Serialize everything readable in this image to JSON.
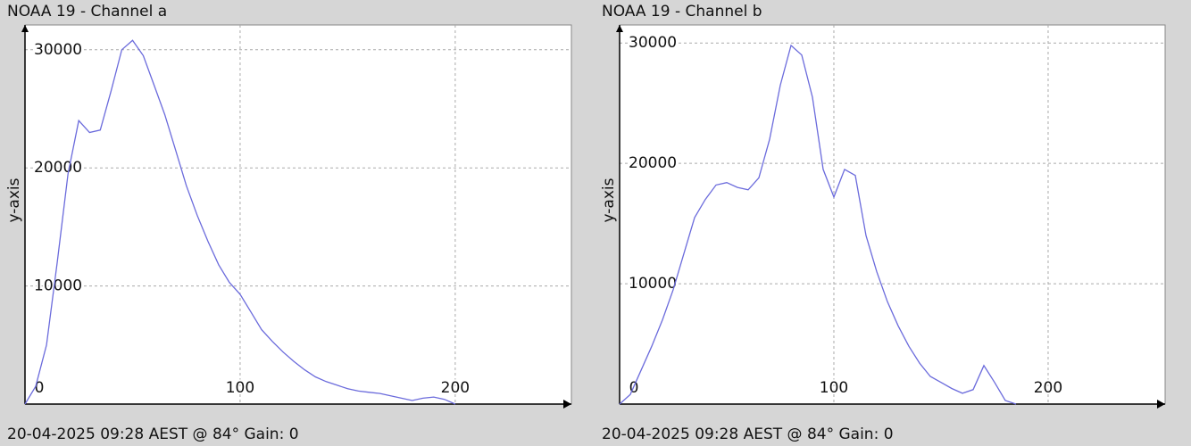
{
  "chart_data": [
    {
      "type": "line",
      "title": "NOAA 19 - Channel a",
      "ylabel": "y-axis",
      "footer": "20-04-2025 09:28 AEST @ 84° Gain: 0",
      "color": "#6b6bdc",
      "grid": true,
      "xlim": [
        0,
        254
      ],
      "ylim": [
        0,
        32100
      ],
      "xticks": [
        0,
        100,
        200
      ],
      "yticks": [
        10000,
        20000,
        30000
      ],
      "x": [
        0,
        5,
        10,
        15,
        20,
        25,
        30,
        35,
        40,
        45,
        50,
        55,
        60,
        65,
        70,
        75,
        80,
        85,
        90,
        95,
        100,
        105,
        110,
        115,
        120,
        125,
        130,
        135,
        140,
        145,
        150,
        155,
        160,
        165,
        170,
        175,
        180,
        185,
        190,
        195,
        200
      ],
      "values": [
        0,
        1500,
        5000,
        12000,
        19500,
        24000,
        23000,
        23200,
        26500,
        30000,
        30800,
        29500,
        27000,
        24500,
        21500,
        18500,
        16000,
        13800,
        11800,
        10300,
        9300,
        7800,
        6300,
        5300,
        4400,
        3600,
        2900,
        2300,
        1900,
        1600,
        1300,
        1100,
        1000,
        900,
        700,
        500,
        300,
        500,
        600,
        400,
        0
      ]
    },
    {
      "type": "line",
      "title": "NOAA 19 - Channel b",
      "ylabel": "y-axis",
      "footer": "20-04-2025 09:28 AEST @ 84° Gain: 0",
      "color": "#6b6bdc",
      "grid": true,
      "xlim": [
        0,
        254.6
      ],
      "ylim": [
        0,
        31500
      ],
      "xticks": [
        0,
        100,
        200
      ],
      "yticks": [
        10000,
        20000,
        30000
      ],
      "x": [
        0,
        5,
        10,
        15,
        20,
        25,
        30,
        35,
        40,
        45,
        50,
        55,
        60,
        65,
        70,
        75,
        80,
        85,
        90,
        95,
        100,
        105,
        110,
        115,
        120,
        125,
        130,
        135,
        140,
        145,
        150,
        155,
        160,
        165,
        170,
        175,
        180,
        185
      ],
      "values": [
        0,
        800,
        2800,
        4800,
        7000,
        9500,
        12500,
        15500,
        17000,
        18200,
        18400,
        18000,
        17800,
        18800,
        22000,
        26500,
        29800,
        29000,
        25500,
        19500,
        17200,
        19500,
        19000,
        14000,
        11000,
        8500,
        6500,
        4800,
        3400,
        2300,
        1800,
        1300,
        900,
        1200,
        3200,
        1800,
        300,
        0
      ]
    }
  ]
}
